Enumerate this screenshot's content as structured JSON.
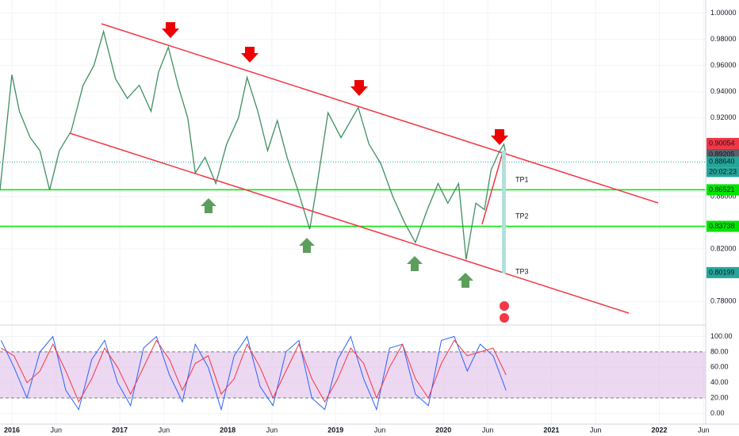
{
  "chart_data": [
    {
      "type": "line",
      "color": "#3f8f5f",
      "x": [
        2015.89,
        2016.0,
        2016.07,
        2016.17,
        2016.26,
        2016.35,
        2016.44,
        2016.55,
        2016.66,
        2016.76,
        2016.85,
        2016.96,
        2017.07,
        2017.18,
        2017.29,
        2017.36,
        2017.45,
        2017.54,
        2017.63,
        2017.7,
        2017.79,
        2017.89,
        2017.99,
        2018.1,
        2018.18,
        2018.28,
        2018.37,
        2018.46,
        2018.55,
        2018.65,
        2018.76,
        2018.83,
        2018.93,
        2019.05,
        2019.21,
        2019.31,
        2019.42,
        2019.53,
        2019.64,
        2019.74,
        2019.85,
        2019.95,
        2020.04,
        2020.14,
        2020.21,
        2020.3,
        2020.38,
        2020.44,
        2020.51,
        2020.56,
        2020.58
      ],
      "values": [
        0.865,
        0.953,
        0.925,
        0.905,
        0.895,
        0.865,
        0.895,
        0.91,
        0.945,
        0.96,
        0.986,
        0.95,
        0.935,
        0.945,
        0.925,
        0.955,
        0.974,
        0.945,
        0.92,
        0.878,
        0.89,
        0.87,
        0.9,
        0.92,
        0.951,
        0.925,
        0.895,
        0.918,
        0.89,
        0.865,
        0.835,
        0.87,
        0.924,
        0.905,
        0.928,
        0.9,
        0.885,
        0.86,
        0.84,
        0.825,
        0.85,
        0.87,
        0.855,
        0.87,
        0.812,
        0.855,
        0.85,
        0.88,
        0.893,
        0.9,
        0.892
      ],
      "xlim": [
        2015.89,
        2022.43
      ],
      "ylim": [
        0.762,
        1.01
      ],
      "yticks": [
        {
          "value": 1.0,
          "label": "1.00000"
        },
        {
          "value": 0.98,
          "label": "0.98000"
        },
        {
          "value": 0.96,
          "label": "0.96000"
        },
        {
          "value": 0.94,
          "label": "0.94000"
        },
        {
          "value": 0.92,
          "label": "0.92000"
        },
        {
          "value": 0.86,
          "label": "0.86000"
        },
        {
          "value": 0.82,
          "label": "0.82000"
        },
        {
          "value": 0.78,
          "label": "0.78000"
        }
      ],
      "xticks": [
        2016,
        {
          "value": 2016.41,
          "label": "Jun"
        },
        2017,
        {
          "value": 2017.41,
          "label": "Jun"
        },
        2018,
        {
          "value": 2018.41,
          "label": "Jun"
        },
        2019,
        {
          "value": 2019.41,
          "label": "Jun"
        },
        2020,
        {
          "value": 2020.41,
          "label": "Jun"
        },
        2021,
        {
          "value": 2021.41,
          "label": "Jun"
        },
        2022,
        {
          "value": 2022.41,
          "label": "Jun"
        }
      ],
      "levels": [
        {
          "value": 0.8652,
          "label": "0.86521"
        },
        {
          "value": 0.8373,
          "label": "0.83738"
        }
      ],
      "price_labels": [
        {
          "value": 0.90054,
          "label": "0.90054",
          "color": "#f23645"
        },
        {
          "value": 0.89205,
          "label": "0.89205",
          "color": "#5d606b"
        },
        {
          "value": 0.8864,
          "label": "0.88640",
          "color": "#26a69a"
        },
        {
          "value": 0.80199,
          "label": "0.80199",
          "color": "#26a69a"
        }
      ],
      "timer": "20:02:23",
      "targets": [
        "TP1",
        "TP2",
        "TP3"
      ]
    },
    {
      "type": "line",
      "x": [
        2015.9,
        2016.02,
        2016.14,
        2016.26,
        2016.38,
        2016.5,
        2016.62,
        2016.74,
        2016.86,
        2016.98,
        2017.1,
        2017.22,
        2017.34,
        2017.46,
        2017.58,
        2017.7,
        2017.82,
        2017.94,
        2018.06,
        2018.18,
        2018.3,
        2018.42,
        2018.54,
        2018.66,
        2018.78,
        2018.9,
        2019.02,
        2019.14,
        2019.26,
        2019.38,
        2019.5,
        2019.62,
        2019.74,
        2019.86,
        2019.98,
        2020.1,
        2020.22,
        2020.34,
        2020.46,
        2020.58
      ],
      "series": [
        {
          "color": "#2962ff",
          "values": [
            95,
            60,
            20,
            80,
            100,
            30,
            5,
            70,
            95,
            40,
            10,
            85,
            100,
            50,
            15,
            90,
            60,
            5,
            75,
            100,
            35,
            10,
            80,
            95,
            20,
            5,
            70,
            100,
            45,
            5,
            85,
            90,
            25,
            10,
            95,
            100,
            55,
            90,
            75,
            30
          ]
        },
        {
          "color": "#f23645",
          "values": [
            85,
            75,
            40,
            55,
            90,
            55,
            15,
            45,
            85,
            60,
            25,
            60,
            95,
            70,
            30,
            65,
            75,
            25,
            45,
            90,
            60,
            20,
            55,
            90,
            45,
            15,
            45,
            85,
            65,
            20,
            60,
            90,
            45,
            20,
            65,
            95,
            75,
            80,
            85,
            50
          ]
        }
      ],
      "xlim": [
        2015.89,
        2022.43
      ],
      "ylim": [
        -14,
        115
      ],
      "band": [
        20,
        80
      ],
      "yticks": [
        {
          "value": 100,
          "label": "100.00"
        },
        {
          "value": 80,
          "label": "80.00"
        },
        {
          "value": 60,
          "label": "60.00"
        },
        {
          "value": 40,
          "label": "40.00"
        },
        {
          "value": 20,
          "label": "20.00"
        },
        {
          "value": 0,
          "label": "0.00"
        }
      ]
    }
  ]
}
